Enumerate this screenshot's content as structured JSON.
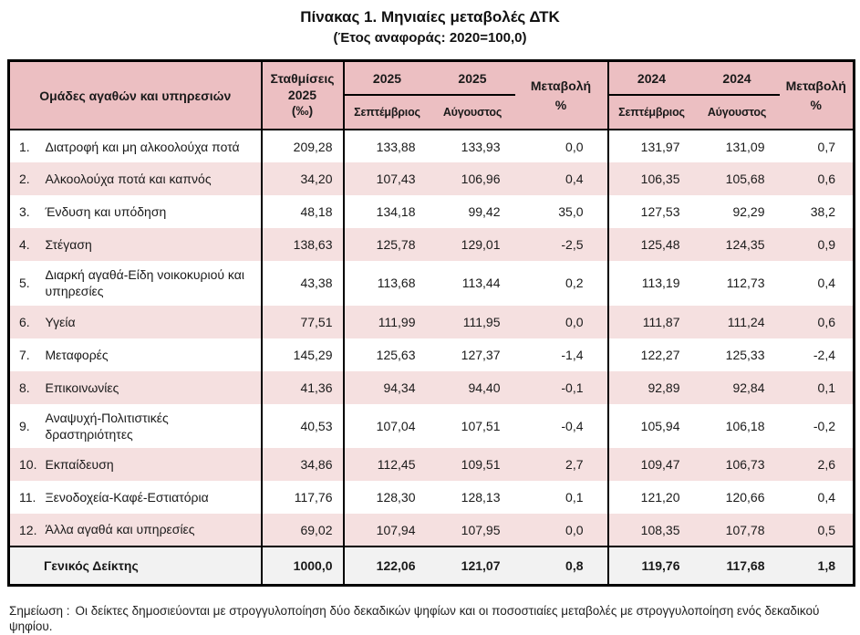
{
  "page": {
    "title": "Πίνακας 1. Μηνιαίες μεταβολές ΔΤΚ",
    "subtitle": "(Έτος αναφοράς: 2020=100,0)",
    "note_label": "Σημείωση :",
    "note_text": "Οι δείκτες δημοσιεύονται με στρογγυλοποίηση δύο δεκαδικών ψηφίων και οι ποσοστιαίες μεταβολές με στρογγυλοποίηση ενός δεκαδικού ψηφίου."
  },
  "table": {
    "header": {
      "groups_label": "Ομάδες αγαθών και υπηρεσιών",
      "weights_lines": [
        "Σταθμίσεις",
        "2025",
        "(‰)"
      ],
      "year_2025": "2025",
      "year_2024": "2024",
      "month_september": "Σεπτέμβριος",
      "month_august": "Αύγουστος",
      "change_lines": [
        "Μεταβολή",
        "%"
      ]
    },
    "rows": [
      {
        "num": "1.",
        "label": "Διατροφή και μη αλκοολούχα ποτά",
        "values": [
          "209,28",
          "133,88",
          "133,93",
          "0,0",
          "131,97",
          "131,09",
          "0,7"
        ]
      },
      {
        "num": "2.",
        "label": "Αλκοολούχα ποτά και καπνός",
        "values": [
          "34,20",
          "107,43",
          "106,96",
          "0,4",
          "106,35",
          "105,68",
          "0,6"
        ]
      },
      {
        "num": "3.",
        "label": "Ένδυση και υπόδηση",
        "values": [
          "48,18",
          "134,18",
          "99,42",
          "35,0",
          "127,53",
          "92,29",
          "38,2"
        ]
      },
      {
        "num": "4.",
        "label": "Στέγαση",
        "values": [
          "138,63",
          "125,78",
          "129,01",
          "-2,5",
          "125,48",
          "124,35",
          "0,9"
        ]
      },
      {
        "num": "5.",
        "label": "Διαρκή αγαθά-Είδη νοικοκυριού και υπηρεσίες",
        "values": [
          "43,38",
          "113,68",
          "113,44",
          "0,2",
          "113,19",
          "112,73",
          "0,4"
        ]
      },
      {
        "num": "6.",
        "label": "Υγεία",
        "values": [
          "77,51",
          "111,99",
          "111,95",
          "0,0",
          "111,87",
          "111,24",
          "0,6"
        ]
      },
      {
        "num": "7.",
        "label": "Μεταφορές",
        "values": [
          "145,29",
          "125,63",
          "127,37",
          "-1,4",
          "122,27",
          "125,33",
          "-2,4"
        ]
      },
      {
        "num": "8.",
        "label": "Επικοινωνίες",
        "values": [
          "41,36",
          "94,34",
          "94,40",
          "-0,1",
          "92,89",
          "92,84",
          "0,1"
        ]
      },
      {
        "num": "9.",
        "label": "Αναψυχή-Πολιτιστικές δραστηριότητες",
        "values": [
          "40,53",
          "107,04",
          "107,51",
          "-0,4",
          "105,94",
          "106,18",
          "-0,2"
        ]
      },
      {
        "num": "10.",
        "label": "Εκπαίδευση",
        "values": [
          "34,86",
          "112,45",
          "109,51",
          "2,7",
          "109,47",
          "106,73",
          "2,6"
        ]
      },
      {
        "num": "11.",
        "label": "Ξενοδοχεία-Καφέ-Εστιατόρια",
        "values": [
          "117,76",
          "128,30",
          "128,13",
          "0,1",
          "121,20",
          "120,66",
          "0,4"
        ]
      },
      {
        "num": "12.",
        "label": "Άλλα αγαθά και υπηρεσίες",
        "values": [
          "69,02",
          "107,94",
          "107,95",
          "0,0",
          "108,35",
          "107,78",
          "0,5"
        ]
      }
    ],
    "footer": {
      "label": "Γενικός Δείκτης",
      "values": [
        "1000,0",
        "122,06",
        "121,07",
        "0,8",
        "119,76",
        "117,68",
        "1,8"
      ]
    }
  },
  "colors": {
    "header_pink": "#ecbfc2",
    "row_pink": "#f5e0e0",
    "footer_bg": "#f2f2f2",
    "border_black": "#000000",
    "text_color": "#1a1a1a"
  }
}
